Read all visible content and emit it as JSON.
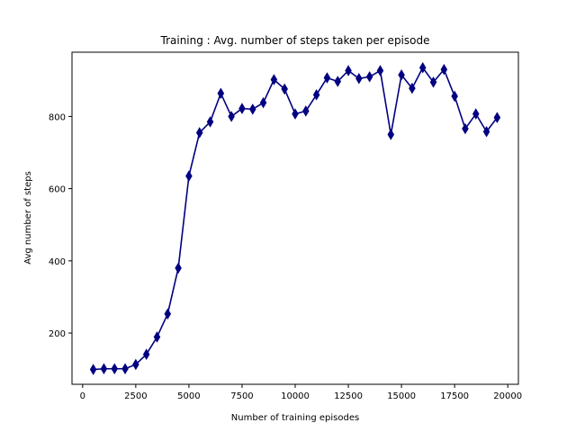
{
  "chart_data": {
    "type": "line",
    "title": "Training : Avg. number of steps taken per episode",
    "xlabel": "Number of training episodes",
    "ylabel": "Avg number of steps",
    "xlim": [
      -500,
      20500
    ],
    "ylim": [
      58,
      978
    ],
    "xticks": [
      0,
      2500,
      5000,
      7500,
      10000,
      12500,
      15000,
      17500,
      20000
    ],
    "yticks": [
      200,
      400,
      600,
      800
    ],
    "grid": false,
    "line_color": "#000080",
    "marker": "thin-diamond",
    "series": [
      {
        "x": [
          500,
          1000,
          1500,
          2000,
          2500,
          3000,
          3500,
          4000,
          4500,
          5000,
          5500,
          6000,
          6500,
          7000,
          7500,
          8000,
          8500,
          9000,
          9500,
          10000,
          10500,
          11000,
          11500,
          12000,
          12500,
          13000,
          13500,
          14000,
          14500,
          15000,
          15500,
          16000,
          16500,
          17000,
          17500,
          18000,
          18500,
          19000,
          19500
        ],
        "y": [
          99,
          101,
          101,
          101,
          113,
          141,
          189,
          253,
          380,
          635,
          755,
          785,
          864,
          800,
          822,
          820,
          838,
          902,
          876,
          807,
          815,
          860,
          907,
          897,
          927,
          905,
          910,
          927,
          750,
          915,
          878,
          935,
          895,
          930,
          856,
          766,
          807,
          758,
          797
        ]
      }
    ]
  }
}
